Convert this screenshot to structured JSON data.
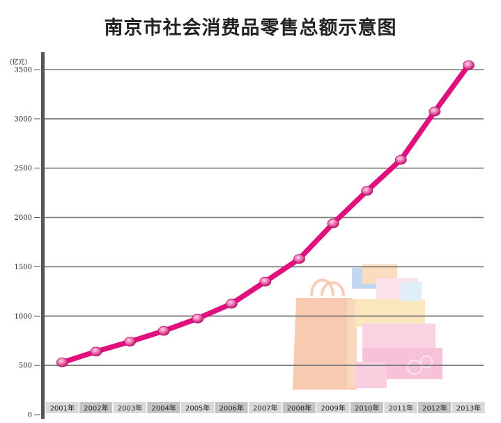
{
  "title": "南京市社会消费品零售总额示意图",
  "chart_data": {
    "type": "line",
    "title": "南京市社会消费品零售总额示意图",
    "yunit": "(亿元)",
    "categories": [
      "2001年",
      "2002年",
      "2003年",
      "2004年",
      "2005年",
      "2006年",
      "2007年",
      "2008年",
      "2009年",
      "2010年",
      "2011年",
      "2012年",
      "2013年"
    ],
    "values": [
      530,
      640,
      740,
      850,
      975,
      1125,
      1350,
      1580,
      1940,
      2270,
      2585,
      3075,
      3545
    ],
    "yticks": [
      0,
      500,
      1000,
      1500,
      2000,
      2500,
      3000,
      3500
    ],
    "ylim": [
      0,
      3500
    ],
    "grid": true,
    "line_color": "#e0117f",
    "marker_color": "#f27bb8"
  }
}
